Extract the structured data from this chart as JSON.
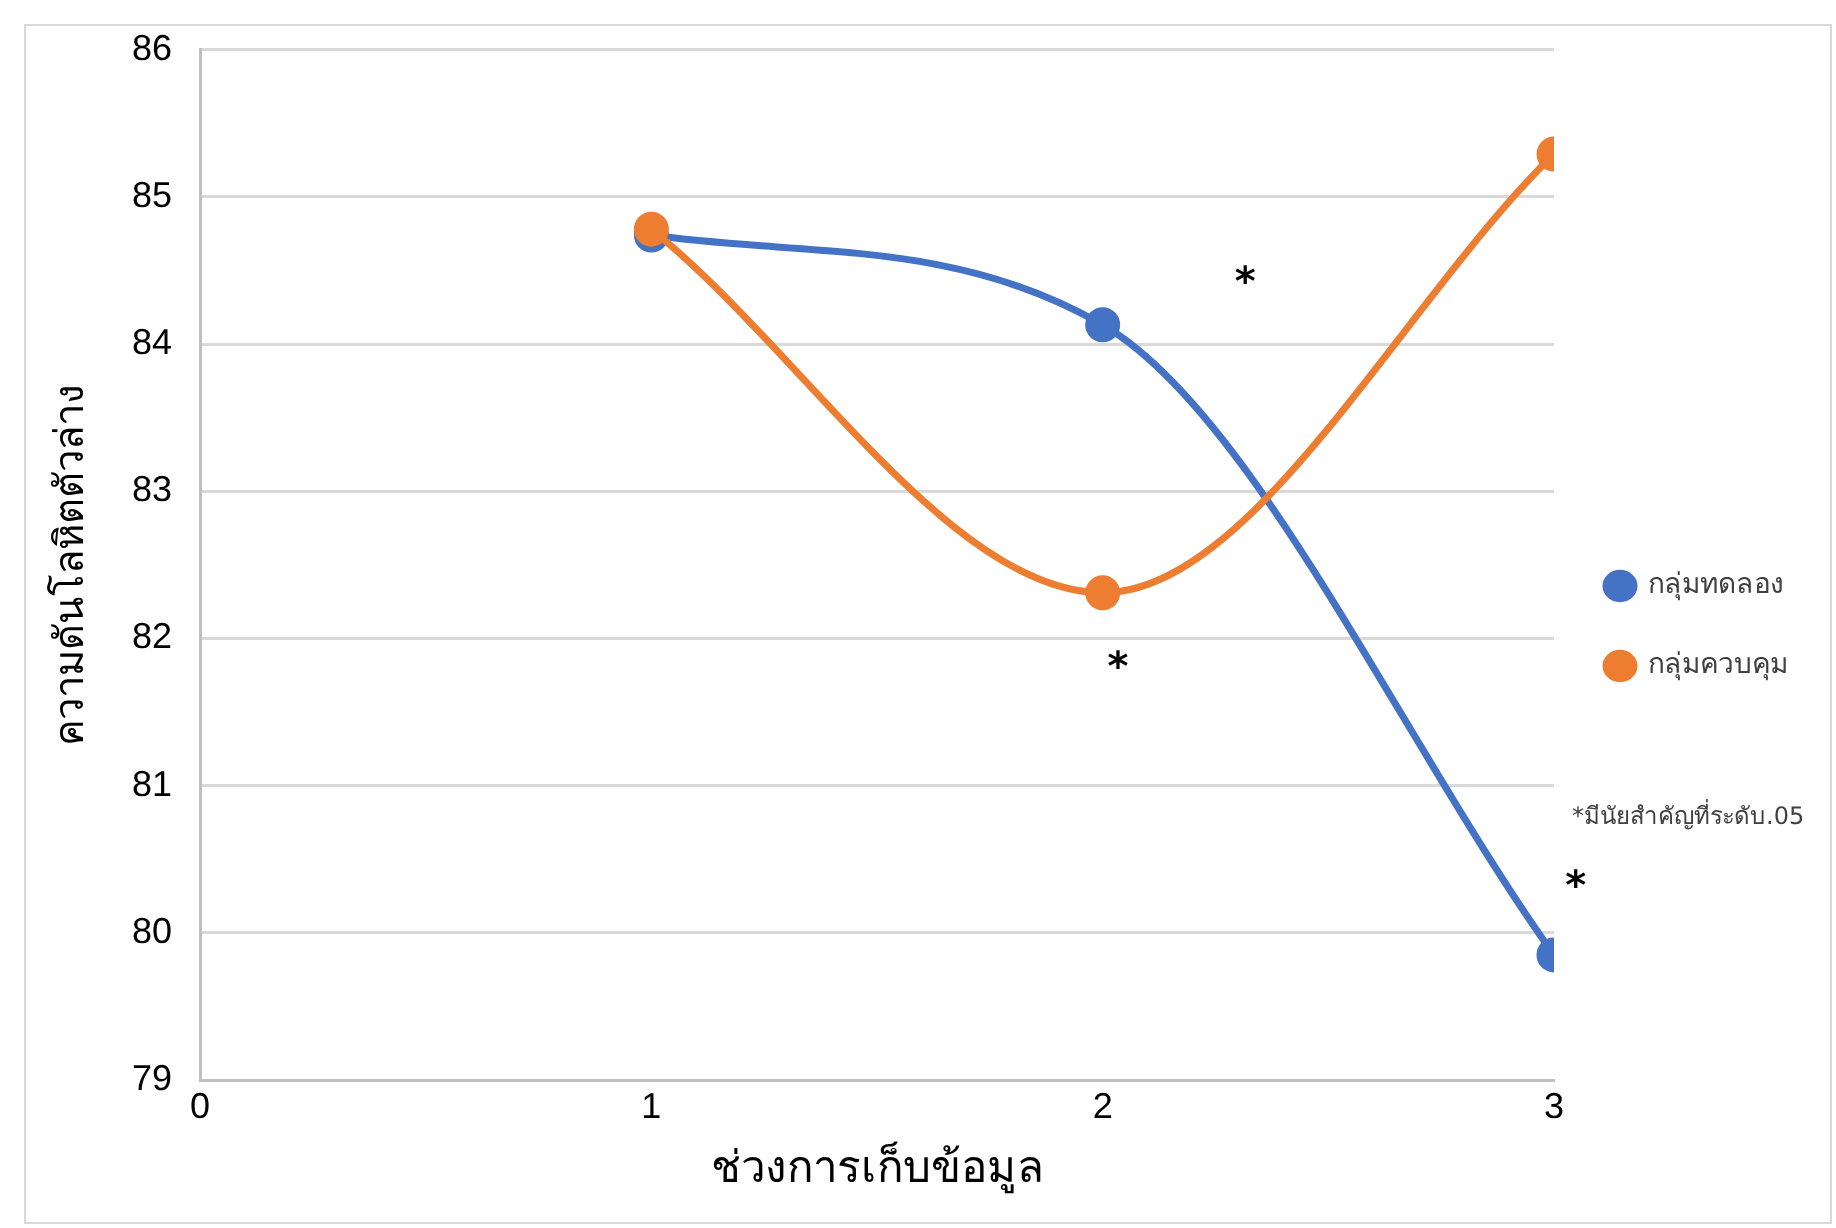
{
  "chart_data": {
    "type": "line",
    "xlabel": "ช่วงการเก็บข้อมูล",
    "ylabel": "ความดันโลหิตตัวล่าง",
    "x": [
      1,
      2,
      3
    ],
    "series": [
      {
        "name": "กลุ่มทดลอง",
        "color": "#4472c4",
        "values": [
          84.74,
          84.13,
          79.85
        ]
      },
      {
        "name": "กลุ่มควบคุม",
        "color": "#ed7d31",
        "values": [
          84.78,
          82.31,
          85.29
        ]
      }
    ],
    "xlim": [
      0,
      3
    ],
    "xticks": [
      0,
      1,
      2,
      3
    ],
    "ylim": [
      79,
      86
    ],
    "yticks": [
      79,
      80,
      81,
      82,
      83,
      84,
      85,
      86
    ],
    "grid": "y",
    "legend": "right",
    "marker": "circle",
    "line_style": "solid",
    "annotations": [
      "*",
      "*",
      "*",
      "*มีนัยสำคัญที่ระดับ.05"
    ]
  }
}
